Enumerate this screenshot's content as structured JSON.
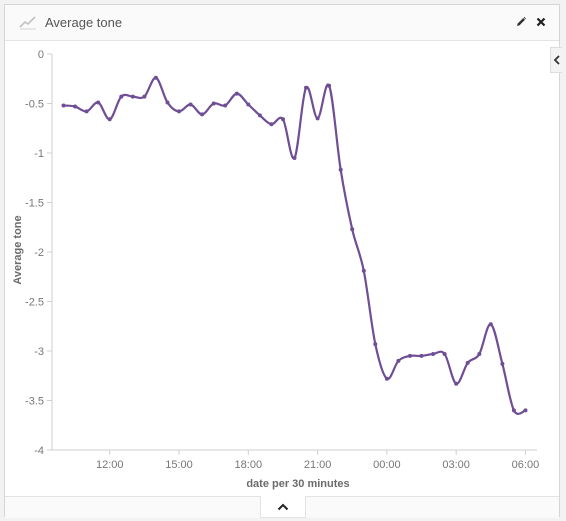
{
  "panel": {
    "title": "Average tone",
    "icons": {
      "chart": "line-chart-icon",
      "edit": "pencil-icon",
      "close": "close-icon",
      "side_toggle": "chevron-left-icon",
      "collapse": "chevron-up-icon"
    }
  },
  "colors": {
    "series": "#6f4e95",
    "axis": "#cfcfcf",
    "text": "#777777"
  },
  "chart_data": {
    "type": "line",
    "title": "",
    "xlabel": "date per 30 minutes",
    "ylabel": "Average tone",
    "ylim": [
      -4,
      0
    ],
    "yticks": [
      0,
      -0.5,
      -1,
      -1.5,
      -2,
      -2.5,
      -3,
      -3.5,
      -4
    ],
    "ytick_labels": [
      "0",
      "-0.5",
      "-1",
      "-1.5",
      "-2",
      "-2.5",
      "-3",
      "-3.5",
      "-4"
    ],
    "xticks": [
      "12:00",
      "15:00",
      "18:00",
      "21:00",
      "00:00",
      "03:00",
      "06:00"
    ],
    "xlim_hours": [
      9.5,
      30.5
    ],
    "grid": false,
    "legend": "none",
    "series": [
      {
        "x_hours": [
          10,
          10.5,
          11,
          11.5,
          12,
          12.5,
          13,
          13.5,
          14,
          14.5,
          15,
          15.5,
          16,
          16.5,
          17,
          17.5,
          18,
          18.5,
          19,
          19.5,
          20,
          20.5,
          21,
          21.5,
          22,
          22.5,
          23,
          23.5,
          24,
          24.5,
          25,
          25.5,
          26,
          26.5,
          27,
          27.5,
          28,
          28.5,
          29,
          29.5,
          30
        ],
        "values": [
          -0.52,
          -0.53,
          -0.58,
          -0.49,
          -0.66,
          -0.43,
          -0.43,
          -0.43,
          -0.24,
          -0.49,
          -0.58,
          -0.51,
          -0.61,
          -0.5,
          -0.52,
          -0.4,
          -0.51,
          -0.62,
          -0.71,
          -0.66,
          -1.05,
          -0.34,
          -0.65,
          -0.32,
          -1.17,
          -1.77,
          -2.19,
          -2.93,
          -3.28,
          -3.1,
          -3.05,
          -3.05,
          -3.03,
          -3.03,
          -3.33,
          -3.12,
          -3.03,
          -2.73,
          -3.13,
          -3.6,
          -3.6
        ]
      }
    ]
  }
}
